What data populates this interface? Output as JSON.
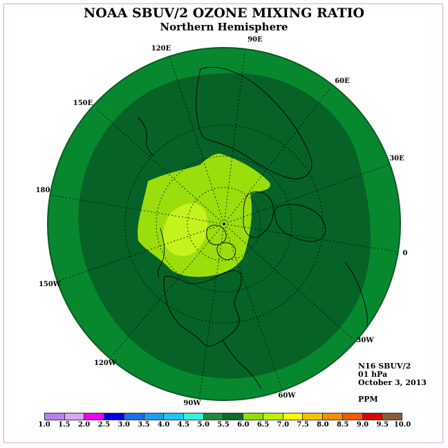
{
  "title": "NOAA SBUV/2 OZONE MIXING RATIO",
  "subtitle": "Northern Hemisphere",
  "longitude_labels": [
    "90E",
    "60E",
    "30E",
    "0",
    "30W",
    "60W",
    "90W",
    "120W",
    "150W",
    "180",
    "150E",
    "120E"
  ],
  "info": {
    "satellite": "N16 SBUV/2",
    "level": "01 hPa",
    "date": "October 3, 2013",
    "unit": "PPM"
  },
  "colorbar": {
    "labels": [
      "1.0",
      "1.5",
      "2.0",
      "2.5",
      "3.0",
      "3.5",
      "4.0",
      "4.5",
      "5.0",
      "5.5",
      "6.0",
      "6.5",
      "7.0",
      "7.5",
      "8.0",
      "8.5",
      "9.0",
      "9.5",
      "10.0"
    ],
    "colors": [
      "#b77ff0",
      "#d9a6f0",
      "#ee00ee",
      "#0000dd",
      "#1a6ee6",
      "#1a9ef0",
      "#22c4f0",
      "#33f0e0",
      "#1a8c3c",
      "#0f6b2a",
      "#92dd00",
      "#c0ef00",
      "#ffff00",
      "#f5c000",
      "#f09000",
      "#f05a00",
      "#e00000",
      "#8b5a3c"
    ]
  },
  "map_colors": {
    "ocean_5_0_to_5_5": "#07882f",
    "band_5_5_to_6_0": "#066226",
    "band_6_0_to_6_5": "#9bde0c",
    "band_6_5_to_7_0": "#c4f21c",
    "band_4_5_to_5_0": "#2ef2e2"
  }
}
